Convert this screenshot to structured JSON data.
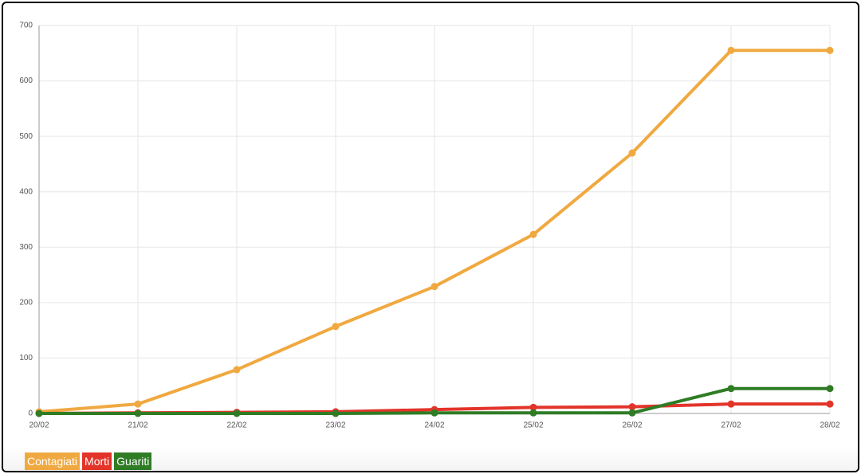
{
  "chart_data": {
    "type": "line",
    "categories": [
      "20/02",
      "21/02",
      "22/02",
      "23/02",
      "24/02",
      "25/02",
      "26/02",
      "27/02",
      "28/02"
    ],
    "series": [
      {
        "name": "Contagiati",
        "color": "#f0a940",
        "values": [
          3,
          17,
          79,
          157,
          229,
          323,
          470,
          655,
          655
        ]
      },
      {
        "name": "Morti",
        "color": "#e3342a",
        "values": [
          0,
          1,
          2,
          3,
          7,
          11,
          12,
          17,
          17
        ]
      },
      {
        "name": "Guariti",
        "color": "#2f7c25",
        "values": [
          0,
          0,
          0,
          0,
          1,
          1,
          1,
          45,
          45
        ]
      }
    ],
    "ylim": [
      0,
      700
    ],
    "yticks": [
      0,
      100,
      200,
      300,
      400,
      500,
      600,
      700
    ],
    "grid": true,
    "legend": "bottom-left"
  }
}
